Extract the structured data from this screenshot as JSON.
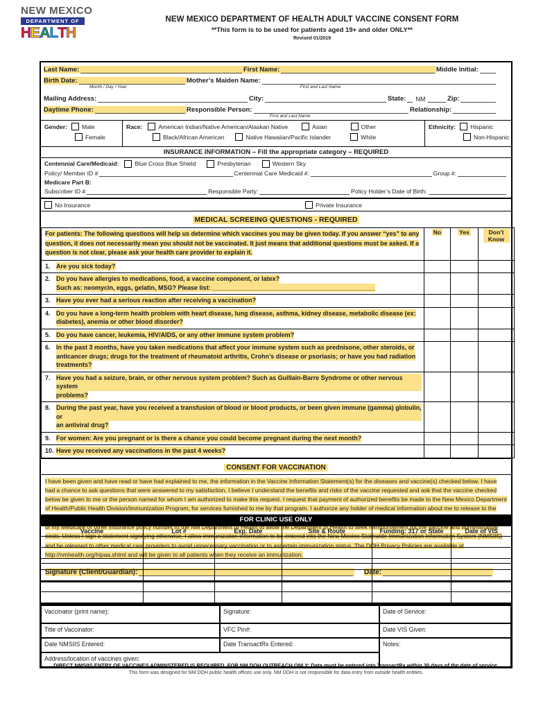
{
  "header": {
    "logo_line1": "NEW MEXICO",
    "logo_line2": "DEPARTMENT OF",
    "logo_letters": [
      {
        "ch": "H",
        "color": "#e31b23"
      },
      {
        "ch": "E",
        "color": "#ffd200"
      },
      {
        "ch": "A",
        "color": "#00a651"
      },
      {
        "ch": "L",
        "color": "#00aeef"
      },
      {
        "ch": "T",
        "color": "#e31b23"
      },
      {
        "ch": "H",
        "color": "#f7941d"
      }
    ],
    "logo_bar_color": "#2b3a90",
    "title": "NEW MEXICO DEPARTMENT OF HEALTH ADULT VACCINE CONSENT FORM",
    "subtitle": "**This form is to be used for patients aged 19+ and older ONLY**",
    "revision": "Revised 01/2019"
  },
  "patient": {
    "last_name_label": "Last Name:",
    "first_name_label": "First Name:",
    "middle_initial_label": "Middle Initial:",
    "birth_date_label": "Birth Date:",
    "birth_date_hint": "Month / Day / Year",
    "mothers_maiden_label": "Mother’s Maiden Name:",
    "mothers_maiden_hint": "First and Last Name",
    "mailing_address_label": "Mailing Address:",
    "city_label": "City:",
    "state_label": "State:",
    "state_value": "NM",
    "zip_label": "Zip:",
    "daytime_phone_label": "Daytime Phone:",
    "responsible_person_label": "Responsible Person:",
    "responsible_person_hint": "First and Last Name",
    "relationship_label": "Relationship:"
  },
  "demographics": {
    "gender_label": "Gender:",
    "gender_options": [
      "Male",
      "Female"
    ],
    "race_label": "Race:",
    "race_row1": [
      "American Indian/Native American/Alaskan Native",
      "Asian",
      "Other"
    ],
    "race_row2": [
      "Black/African American",
      "Native Hawaiian/Pacific Islander",
      "White"
    ],
    "ethnicity_label": "Ethnicity:",
    "ethnicity_options": [
      "Hispanic",
      "Non-Hispanic"
    ]
  },
  "insurance": {
    "header": "INSURANCE INFORMATION – Fill the appropriate category – REQUIRED",
    "centennial_label": "Centennial Care/Medicaid:",
    "centennial_options": [
      "Blue Cross Blue Shield",
      "Presbyterian",
      "Western Sky"
    ],
    "policy_member_label": "Policy/ Member ID #",
    "centennial_medicaid_label": "Centennial Care Medicaid #:",
    "group_label": "Group #:",
    "medicare_label": "Medicare Part B:",
    "subscriber_label": "Subscriber ID #",
    "responsible_party_label": "Responsible Party:",
    "policy_holder_dob_label": "Policy Holder’s Date of Birth:",
    "no_insurance_label": "No Insurance",
    "private_insurance_label": "Private Insurance"
  },
  "screening": {
    "header": "MEDICAL SCREEING QUESTIONS - REQUIRED",
    "intro_label": "For patients:",
    "intro_text": "The following questions will help us determine which vaccines you may be given today. If you answer “yes” to any question, it does not necessarily mean you should not be vaccinated. It just means that additional questions must be asked. If a question is not clear, please ask your health care provider to explain it.",
    "columns": [
      "No",
      "Yes",
      "Don’t Know"
    ],
    "questions": [
      {
        "num": "1.",
        "lines": [
          "Are you sick today?"
        ]
      },
      {
        "num": "2.",
        "lines": [
          "Do you have allergies to medications, food, a vaccine component, or latex?",
          "Such as: neomycin, eggs, gelatin, MSG? Please list: _______________________________________________"
        ]
      },
      {
        "num": "3.",
        "lines": [
          "Have you ever had a serious reaction after receiving a vaccination?"
        ]
      },
      {
        "num": "4.",
        "lines": [
          "Do you have a long-term health problem with heart disease, lung disease, asthma, kidney disease, metabolic disease (ex:",
          "diabetes), anemia or other blood disorder?"
        ]
      },
      {
        "num": "5.",
        "lines": [
          "Do you have cancer, leukemia, HIV/AIDS, or any other immune system problem?"
        ]
      },
      {
        "num": "6.",
        "lines": [
          "In the past 3 months, have you taken medications that affect your immune system such as prednisone, other steroids, or",
          "anticancer drugs; drugs for the treatment of rheumatoid arthritis, Crohn’s disease or psoriasis; or have you had radiation",
          "treatments?"
        ]
      },
      {
        "num": "7.",
        "lines": [
          "Have you had a seizure, brain, or other nervous system problem? Such as Guillain-Barre Syndrome or other nervous system",
          "problems?"
        ]
      },
      {
        "num": "8.",
        "lines": [
          "During the past year, have you received a transfusion of blood or blood products, or been given immune (gamma) globulin, or",
          "an antiviral drug?"
        ]
      },
      {
        "num": "9.",
        "lines": [
          "For women: Are you pregnant or is there a chance you could become pregnant during the next month?"
        ]
      },
      {
        "num": "10.",
        "lines": [
          "Have you received any vaccinations in the past 4 weeks?"
        ]
      }
    ]
  },
  "consent": {
    "header": "CONSENT FOR VACCINATION",
    "text": "I have been given and have read or have had explained to me, the information in the Vaccine Information Statement(s) for the diseases and vaccine(s) checked below. I have had a chance to ask questions that were answered to my satisfaction. I believe I understand the benefits and risks of the vaccine requested and ask that the vaccine checked below be given to me or the person named for whom I am authorized to make this request. I request that payment of authorized benefits be made to the New Mexico Department of Health/Public Health Division/Immunization Program, for services furnished to me by that program. I authorize any holder of medical information about me to release to the Centers for Medicare and Medicaid Services and its agents any information needed to determine these benefits payable for related services. I specifically authorize the release of my Medicare or other insurance policy number to the NM Department of Health to allow the Department of Health to seek reimbursement for the vaccine and administrative costs. Unless I sign a statement signifying otherwise, I allow immunization information to be entered into the New Mexico Statewide Immunization Information System (NMSIIS) and be released to other medical care providers to avoid unnecessary vaccination or to ascertain immunization status. The DOH Privacy Policies are available at http://nmhealth.org/hipaa.shtml and will be given to all patients when they receive an immunization.",
    "signature_label": "Signature (Client/Guardian):",
    "date_label": "Date:"
  },
  "clinic": {
    "bar_title": "FOR CLINIC USE ONLY",
    "columns": [
      "Vaccine",
      "Lot #",
      "Exp. Date",
      "Site & Route",
      "Funding: 317 or State",
      "Date of VIS"
    ],
    "row_count": 6,
    "admin": {
      "vaccinator_label": "Vaccinator (print name):",
      "signature_label": "Signature:",
      "date_of_service_label": "Date of Service:",
      "title_label": "Title of Vaccinator:",
      "vfc_pin_label": "VFC Pin#:",
      "date_vis_given_label": "Date VIS Given:",
      "nmsiis_entered_label": "Date NMSIIS Entered:",
      "transactrx_entered_label": "Date TransactRx Entered:",
      "notes_label": "Notes:",
      "address_label": "Address/location of vaccines given:"
    }
  },
  "footer": {
    "line1": "DIRECT NMSIIS ENTRY OF VACCINES ADMINSTERED IS REQUIRED. FOR NM DOH OUTREACH ONLY: Data must be entered into TransactRx within 30 days of the date of service.",
    "line2": "This form was designed for NM DOH public health offices use only. NM DOH is not responsible for data entry from outside health entities."
  },
  "colors": {
    "highlight": "#fbe18a",
    "clinic_bar": "#000000",
    "logo_bar": "#2b3a90"
  }
}
